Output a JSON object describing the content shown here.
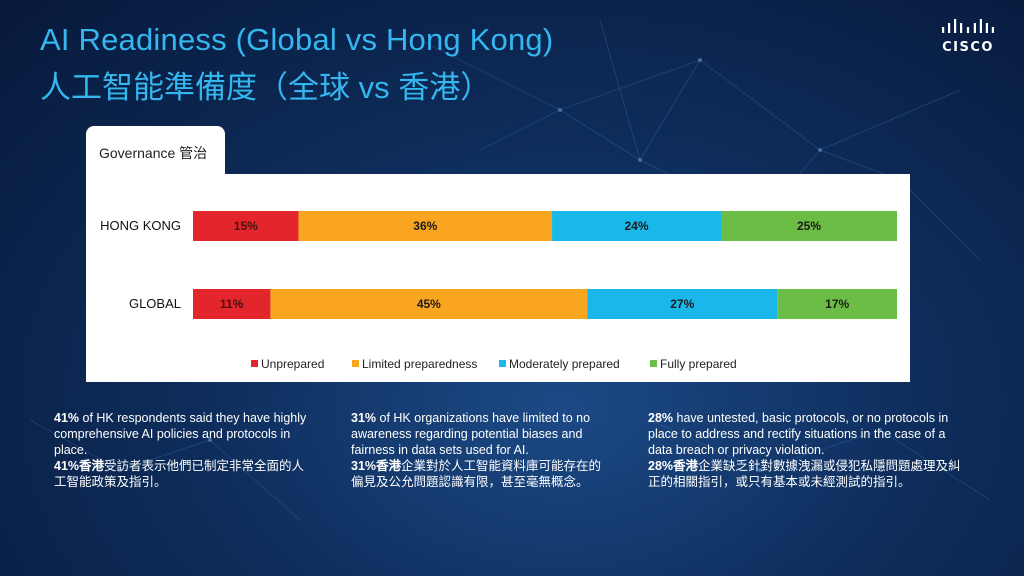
{
  "title": {
    "en": "AI Readiness (Global vs Hong Kong)",
    "zh": "人工智能準備度（全球 vs 香港）"
  },
  "logo": {
    "name": "cisco-logo",
    "text": "CISCO"
  },
  "tab": {
    "label": "Governance 管治"
  },
  "chart_data": {
    "type": "bar",
    "orientation": "horizontal-stacked-100",
    "categories": [
      "HONG KONG",
      "GLOBAL"
    ],
    "series": [
      {
        "name": "Unprepared",
        "color": "#e3262b",
        "values": [
          15,
          11
        ],
        "labels": [
          "15%",
          "11%"
        ]
      },
      {
        "name": "Limited preparedness",
        "color": "#f9a51f",
        "values": [
          36,
          45
        ],
        "labels": [
          "36%",
          "45%"
        ]
      },
      {
        "name": "Moderately prepared",
        "color": "#1ab7ea",
        "values": [
          24,
          27
        ],
        "labels": [
          "24%",
          "27%"
        ]
      },
      {
        "name": "Fully prepared",
        "color": "#6cbd45",
        "values": [
          25,
          17
        ],
        "labels": [
          "25%",
          "17%"
        ]
      }
    ],
    "legend": "bottom",
    "grid": false
  },
  "notes": [
    {
      "en_bold": "41%",
      "en_rest": " of HK respondents said they have highly comprehensive AI policies and protocols in place.",
      "zh_bold": "41%香港",
      "zh_rest": "受訪者表示他們已制定非常全面的人工智能政策及指引。"
    },
    {
      "en_bold": "31%",
      "en_rest": " of HK organizations have limited to no awareness regarding potential biases and fairness in data sets used for AI.",
      "zh_bold": "31%香港",
      "zh_rest": "企業對於人工智能資料庫可能存在的偏見及公允問題認識有限，甚至毫無概念。"
    },
    {
      "en_bold": "28%",
      "en_rest": " have untested, basic protocols, or no protocols in place to address and rectify situations in the case of a data breach or privacy violation.",
      "zh_bold": "28%香港",
      "zh_rest": "企業缺乏針對數據洩漏或侵犯私隱問題處理及糾正的相關指引，或只有基本或未經測試的指引。"
    }
  ]
}
